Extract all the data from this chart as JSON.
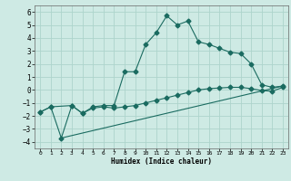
{
  "xlabel": "Humidex (Indice chaleur)",
  "bg_color": "#ceeae4",
  "line_color": "#1a6b60",
  "grid_color": "#add4cc",
  "xlim": [
    -0.5,
    23.5
  ],
  "ylim": [
    -4.5,
    6.5
  ],
  "xticks": [
    0,
    1,
    2,
    3,
    4,
    5,
    6,
    7,
    8,
    9,
    10,
    11,
    12,
    13,
    14,
    15,
    16,
    17,
    18,
    19,
    20,
    21,
    22,
    23
  ],
  "yticks": [
    -4,
    -3,
    -2,
    -1,
    0,
    1,
    2,
    3,
    4,
    5,
    6
  ],
  "series1_x": [
    0,
    1,
    2,
    3,
    4,
    5,
    6,
    7,
    8,
    9,
    10,
    11,
    12,
    13,
    14,
    15,
    16,
    17,
    18,
    19,
    20,
    21,
    22,
    23
  ],
  "series1_y": [
    -1.7,
    -1.3,
    -3.7,
    -1.2,
    -1.8,
    -1.3,
    -1.2,
    -1.2,
    1.4,
    1.4,
    3.5,
    4.4,
    5.7,
    5.0,
    5.3,
    3.7,
    3.5,
    3.2,
    2.9,
    2.8,
    2.0,
    0.4,
    0.2,
    0.3
  ],
  "series2_x": [
    0,
    1,
    3,
    4,
    5,
    6,
    7,
    8,
    9,
    10,
    11,
    12,
    13,
    14,
    15,
    16,
    17,
    18,
    19,
    20,
    21,
    22,
    23
  ],
  "series2_y": [
    -1.7,
    -1.3,
    -1.2,
    -1.8,
    -1.4,
    -1.3,
    -1.4,
    -1.3,
    -1.2,
    -1.0,
    -0.8,
    -0.6,
    -0.4,
    -0.2,
    0.0,
    0.1,
    0.15,
    0.2,
    0.2,
    0.1,
    -0.05,
    -0.1,
    0.2
  ],
  "series3_x": [
    2,
    23
  ],
  "series3_y": [
    -3.7,
    0.3
  ]
}
